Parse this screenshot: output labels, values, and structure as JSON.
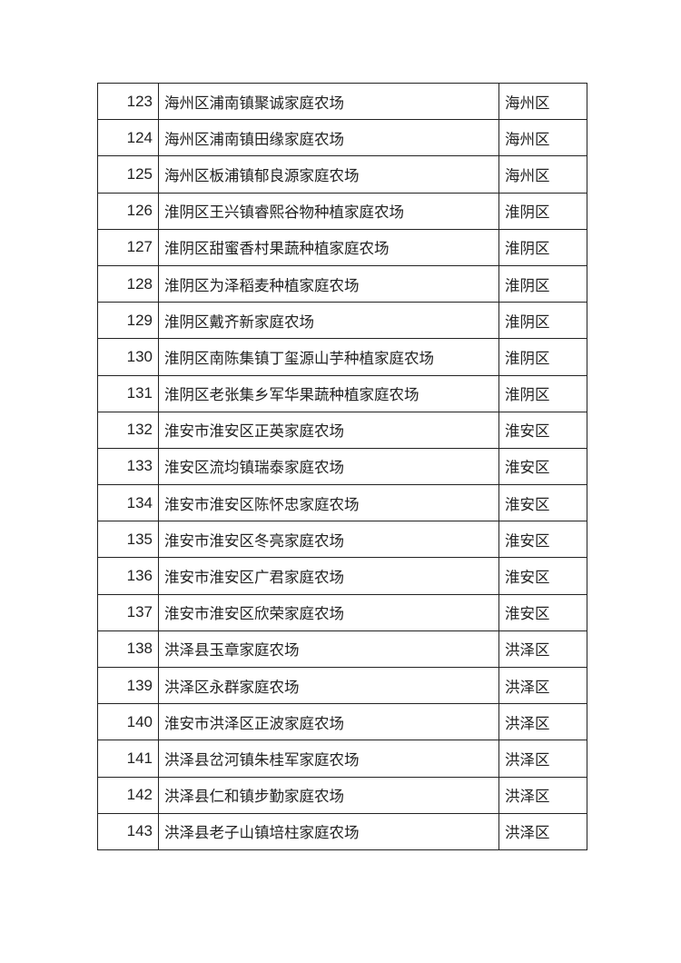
{
  "table": {
    "rows": [
      {
        "no": "123",
        "name": "海州区浦南镇聚诚家庭农场",
        "district": "海州区"
      },
      {
        "no": "124",
        "name": "海州区浦南镇田缘家庭农场",
        "district": "海州区"
      },
      {
        "no": "125",
        "name": "海州区板浦镇郁良源家庭农场",
        "district": "海州区"
      },
      {
        "no": "126",
        "name": "淮阴区王兴镇睿熙谷物种植家庭农场",
        "district": "淮阴区"
      },
      {
        "no": "127",
        "name": "淮阴区甜蜜香村果蔬种植家庭农场",
        "district": "淮阴区"
      },
      {
        "no": "128",
        "name": "淮阴区为泽稻麦种植家庭农场",
        "district": "淮阴区"
      },
      {
        "no": "129",
        "name": "淮阴区戴齐新家庭农场",
        "district": "淮阴区"
      },
      {
        "no": "130",
        "name": "淮阴区南陈集镇丁玺源山芋种植家庭农场",
        "district": "淮阴区"
      },
      {
        "no": "131",
        "name": "淮阴区老张集乡军华果蔬种植家庭农场",
        "district": "淮阴区"
      },
      {
        "no": "132",
        "name": "淮安市淮安区正英家庭农场",
        "district": "淮安区"
      },
      {
        "no": "133",
        "name": "淮安区流均镇瑞泰家庭农场",
        "district": "淮安区"
      },
      {
        "no": "134",
        "name": "淮安市淮安区陈怀忠家庭农场",
        "district": "淮安区"
      },
      {
        "no": "135",
        "name": "淮安市淮安区冬亮家庭农场",
        "district": "淮安区"
      },
      {
        "no": "136",
        "name": "淮安市淮安区广君家庭农场",
        "district": "淮安区"
      },
      {
        "no": "137",
        "name": "淮安市淮安区欣荣家庭农场",
        "district": "淮安区"
      },
      {
        "no": "138",
        "name": "洪泽县玉章家庭农场",
        "district": "洪泽区"
      },
      {
        "no": "139",
        "name": "洪泽区永群家庭农场",
        "district": "洪泽区"
      },
      {
        "no": "140",
        "name": "淮安市洪泽区正波家庭农场",
        "district": "洪泽区"
      },
      {
        "no": "141",
        "name": "洪泽县岔河镇朱桂军家庭农场",
        "district": "洪泽区"
      },
      {
        "no": "142",
        "name": "洪泽县仁和镇步勤家庭农场",
        "district": "洪泽区"
      },
      {
        "no": "143",
        "name": "洪泽县老子山镇培柱家庭农场",
        "district": "洪泽区"
      }
    ]
  }
}
